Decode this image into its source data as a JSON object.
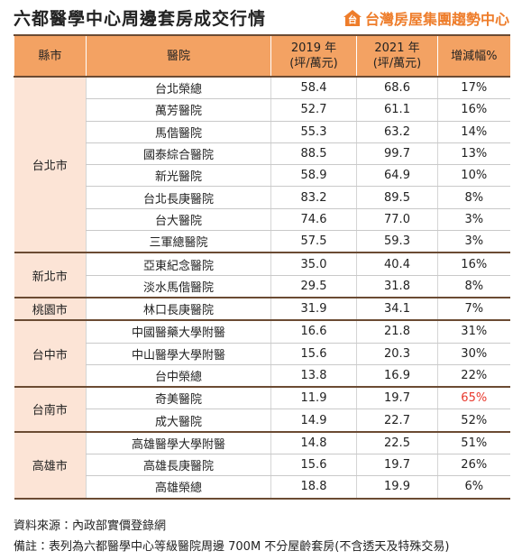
{
  "header": {
    "title": "六都醫學中心周邊套房成交行情",
    "brand": "台灣房屋集團趨勢中心",
    "brand_icon": "台"
  },
  "table": {
    "columns": [
      [
        "縣市"
      ],
      [
        "醫院"
      ],
      [
        "2019 年",
        "(坪/萬元)"
      ],
      [
        "2021 年",
        "(坪/萬元)"
      ],
      [
        "增減幅%"
      ]
    ],
    "groups": [
      {
        "city": "台北市",
        "rows": [
          [
            "台北榮總",
            "58.4",
            "68.6",
            "17%"
          ],
          [
            "萬芳醫院",
            "52.7",
            "61.1",
            "16%"
          ],
          [
            "馬偕醫院",
            "55.3",
            "63.2",
            "14%"
          ],
          [
            "國泰綜合醫院",
            "88.5",
            "99.7",
            "13%"
          ],
          [
            "新光醫院",
            "58.9",
            "64.9",
            "10%"
          ],
          [
            "台北長庚醫院",
            "83.2",
            "89.5",
            "8%"
          ],
          [
            "台大醫院",
            "74.6",
            "77.0",
            "3%"
          ],
          [
            "三軍總醫院",
            "57.5",
            "59.3",
            "3%"
          ]
        ]
      },
      {
        "city": "新北市",
        "rows": [
          [
            "亞東紀念醫院",
            "35.0",
            "40.4",
            "16%"
          ],
          [
            "淡水馬偕醫院",
            "29.5",
            "31.8",
            "8%"
          ]
        ]
      },
      {
        "city": "桃園市",
        "rows": [
          [
            "林口長庚醫院",
            "31.9",
            "34.1",
            "7%"
          ]
        ]
      },
      {
        "city": "台中市",
        "rows": [
          [
            "中國醫藥大學附醫",
            "16.6",
            "21.8",
            "31%"
          ],
          [
            "中山醫學大學附醫",
            "15.6",
            "20.3",
            "30%"
          ],
          [
            "台中榮總",
            "13.8",
            "16.9",
            "22%"
          ]
        ]
      },
      {
        "city": "台南市",
        "rows": [
          [
            "奇美醫院",
            "11.9",
            "19.7",
            {
              "text": "65%",
              "color": "#e8382c"
            }
          ],
          [
            "成大醫院",
            "14.9",
            "22.7",
            "52%"
          ]
        ]
      },
      {
        "city": "高雄市",
        "rows": [
          [
            "高雄醫學大學附醫",
            "14.8",
            "22.5",
            "51%"
          ],
          [
            "高雄長庚醫院",
            "15.6",
            "19.7",
            "26%"
          ],
          [
            "高雄榮總",
            "18.8",
            "19.9",
            "6%"
          ]
        ]
      }
    ]
  },
  "footer": {
    "source": "資料來源：內政部實價登錄網",
    "note": "備註：表列為六都醫學中心等級醫院周邊 700M 不分屋齡套房(不含透天及特殊交易)"
  }
}
